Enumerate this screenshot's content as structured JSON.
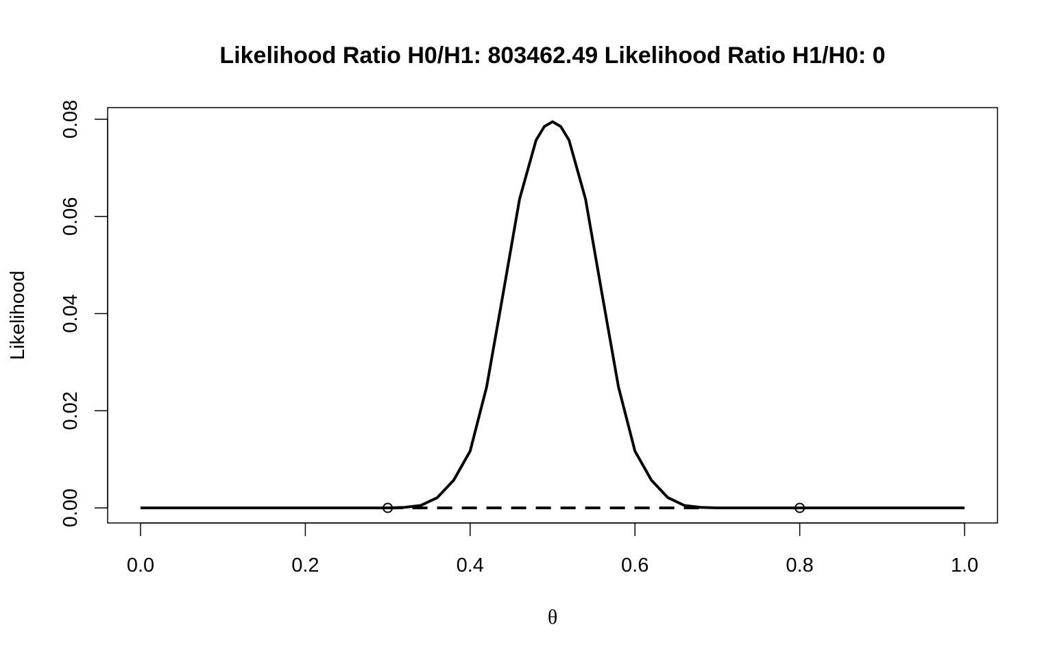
{
  "chart_data": {
    "type": "line",
    "title": "Likelihood Ratio H0/H1: 803462.49  Likelihood Ratio H1/H0: 0",
    "xlabel": "θ",
    "ylabel": "Likelihood",
    "xlim": [
      0,
      1
    ],
    "ylim": [
      0,
      0.08
    ],
    "x_ticks": [
      "0.0",
      "0.2",
      "0.4",
      "0.6",
      "0.8",
      "1.0"
    ],
    "x_tick_values": [
      0,
      0.2,
      0.4,
      0.6,
      0.8,
      1.0
    ],
    "y_ticks": [
      "0.00",
      "0.02",
      "0.04",
      "0.06",
      "0.08"
    ],
    "y_tick_values": [
      0,
      0.02,
      0.04,
      0.06,
      0.08
    ],
    "grid": false,
    "series": [
      {
        "style": "solid",
        "color": "#000000",
        "x": [
          0,
          0.1,
          0.2,
          0.3,
          0.32,
          0.34,
          0.36,
          0.38,
          0.4,
          0.42,
          0.44,
          0.46,
          0.48,
          0.49,
          0.5,
          0.51,
          0.52,
          0.54,
          0.56,
          0.58,
          0.6,
          0.62,
          0.64,
          0.66,
          0.68,
          0.7,
          0.8,
          0.9,
          1.0
        ],
        "y": [
          0,
          0,
          0,
          0.0,
          0.0001,
          0.0005,
          0.0021,
          0.0057,
          0.0117,
          0.0249,
          0.0441,
          0.0636,
          0.0757,
          0.0785,
          0.0795,
          0.0785,
          0.0757,
          0.0636,
          0.0441,
          0.0249,
          0.0117,
          0.0057,
          0.0021,
          0.0005,
          0.0001,
          0,
          0,
          0,
          0
        ]
      },
      {
        "style": "dashed",
        "color": "#000000",
        "x": [
          0.3,
          0.68
        ],
        "y": [
          0,
          0
        ]
      }
    ],
    "points": [
      {
        "x": 0.3,
        "y": 0
      },
      {
        "x": 0.8,
        "y": 0
      }
    ]
  }
}
